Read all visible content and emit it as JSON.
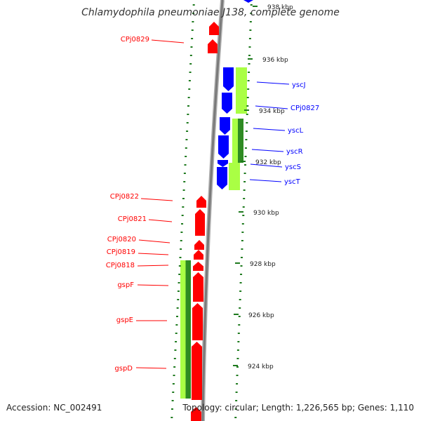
{
  "title": "Chlamydophila pneumoniae J138, complete genome",
  "footer": {
    "accession": "Accession: NC_002491",
    "summary": "Topology: circular; Length: 1,226,565 bp; Genes: 1,110"
  },
  "colors": {
    "backbone": "#8c8c8c",
    "forward_gene": "#0000ff",
    "reverse_gene": "#ff0000",
    "feature_light": "#aaff44",
    "feature_dark": "#2e8b22",
    "tick": "#1e7a1e",
    "ruler_text": "#222222"
  },
  "ruler": [
    {
      "label": "938 kbp"
    },
    {
      "label": "936 kbp"
    },
    {
      "label": "934 kbp"
    },
    {
      "label": "932 kbp"
    },
    {
      "label": "930 kbp"
    },
    {
      "label": "928 kbp"
    },
    {
      "label": "926 kbp"
    },
    {
      "label": "924 kbp"
    }
  ],
  "forward_labels": [
    "yscJ",
    "CPj0827",
    "yscL",
    "yscR",
    "yscS",
    "yscT"
  ],
  "reverse_labels": [
    "CPj0829",
    "CPj0822",
    "CPj0821",
    "CPj0820",
    "CPj0819",
    "CPj0818",
    "gspF",
    "gspE",
    "gspD"
  ]
}
